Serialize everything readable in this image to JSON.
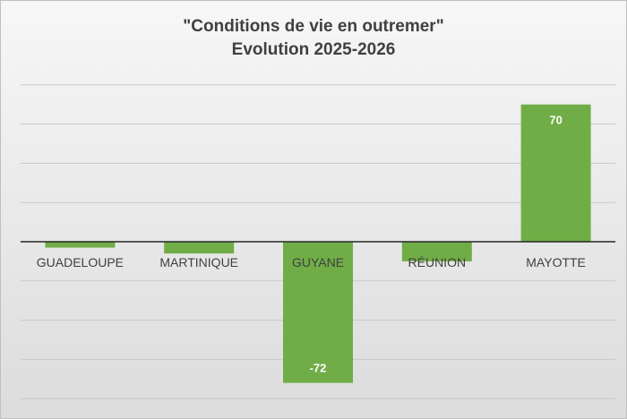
{
  "chart_data": {
    "type": "bar",
    "title": "\"Conditions de vie en outremer\"",
    "subtitle": "Evolution 2025-2026",
    "categories": [
      "GUADELOUPE",
      "MARTINIQUE",
      "GUYANE",
      "RÉUNION",
      "MAYOTTE"
    ],
    "values": [
      -3,
      -6,
      -72,
      -10,
      70
    ],
    "data_labels": [
      "",
      "",
      "-72",
      "",
      "70"
    ],
    "ylim": [
      -80,
      80
    ],
    "grid": true,
    "legend": "none",
    "bar_color": "#70ad47"
  }
}
